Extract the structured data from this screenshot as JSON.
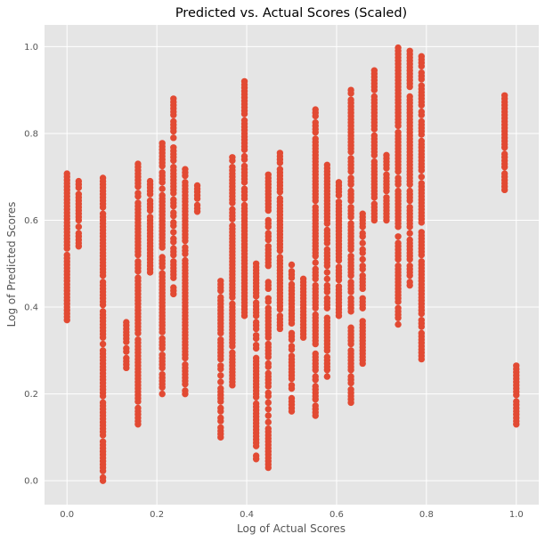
{
  "chart_data": {
    "type": "scatter",
    "title": "Predicted vs. Actual Scores (Scaled)",
    "xlabel": "Log of Actual Scores",
    "ylabel": "Log of Predicted Scores",
    "xlim": [
      -0.05,
      1.05
    ],
    "ylim": [
      -0.055,
      1.05
    ],
    "xticks": [
      "0.0",
      "0.2",
      "0.4",
      "0.6",
      "0.8",
      "1.0"
    ],
    "yticks": [
      "0.0",
      "0.2",
      "0.4",
      "0.6",
      "0.8",
      "1.0"
    ],
    "grid": true,
    "colors": {
      "background": "#e5e5e5",
      "grid": "#ffffff",
      "marker": "#e24a33"
    },
    "columns": [
      {
        "x": 0.0,
        "y_min": 0.37,
        "y_max": 0.71
      },
      {
        "x": 0.026,
        "y_min": 0.54,
        "y_max": 0.69
      },
      {
        "x": 0.08,
        "y_min": 0.0,
        "y_max": 0.7
      },
      {
        "x": 0.132,
        "y_min": 0.26,
        "y_max": 0.37
      },
      {
        "x": 0.158,
        "y_min": 0.13,
        "y_max": 0.73
      },
      {
        "x": 0.185,
        "y_min": 0.48,
        "y_max": 0.69
      },
      {
        "x": 0.212,
        "y_min": 0.2,
        "y_max": 0.78
      },
      {
        "x": 0.237,
        "y_min": 0.43,
        "y_max": 0.88
      },
      {
        "x": 0.263,
        "y_min": 0.2,
        "y_max": 0.72
      },
      {
        "x": 0.29,
        "y_min": 0.62,
        "y_max": 0.68
      },
      {
        "x": 0.342,
        "y_min": 0.1,
        "y_max": 0.46
      },
      {
        "x": 0.368,
        "y_min": 0.22,
        "y_max": 0.75
      },
      {
        "x": 0.395,
        "y_min": 0.38,
        "y_max": 0.92
      },
      {
        "x": 0.421,
        "y_min": 0.05,
        "y_max": 0.5
      },
      {
        "x": 0.448,
        "y_min": 0.03,
        "y_max": 0.71
      },
      {
        "x": 0.474,
        "y_min": 0.35,
        "y_max": 0.76
      },
      {
        "x": 0.5,
        "y_min": 0.16,
        "y_max": 0.5
      },
      {
        "x": 0.526,
        "y_min": 0.33,
        "y_max": 0.47
      },
      {
        "x": 0.553,
        "y_min": 0.15,
        "y_max": 0.86
      },
      {
        "x": 0.579,
        "y_min": 0.24,
        "y_max": 0.73
      },
      {
        "x": 0.605,
        "y_min": 0.38,
        "y_max": 0.69
      },
      {
        "x": 0.632,
        "y_min": 0.18,
        "y_max": 0.9
      },
      {
        "x": 0.658,
        "y_min": 0.27,
        "y_max": 0.62
      },
      {
        "x": 0.684,
        "y_min": 0.6,
        "y_max": 0.95
      },
      {
        "x": 0.711,
        "y_min": 0.6,
        "y_max": 0.75
      },
      {
        "x": 0.737,
        "y_min": 0.36,
        "y_max": 1.0
      },
      {
        "x": 0.763,
        "y_min": 0.45,
        "y_max": 0.99
      },
      {
        "x": 0.789,
        "y_min": 0.28,
        "y_max": 0.98
      },
      {
        "x": 0.974,
        "y_min": 0.67,
        "y_max": 0.89
      },
      {
        "x": 1.0,
        "y_min": 0.13,
        "y_max": 0.27
      }
    ]
  }
}
